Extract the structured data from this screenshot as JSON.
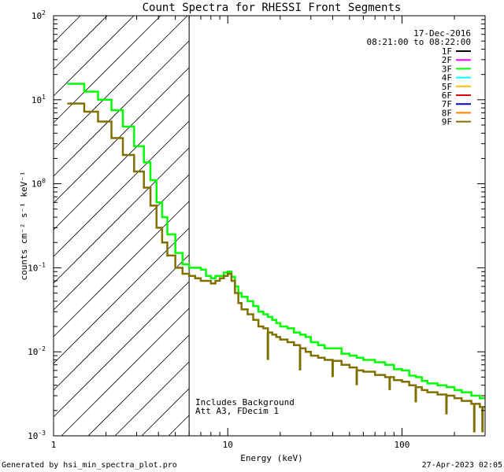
{
  "chart_data": {
    "type": "line",
    "title": "Count Spectra for RHESSI Front Segments",
    "xlabel": "Energy (keV)",
    "ylabel": "counts cm⁻² s⁻¹ keV⁻¹",
    "xscale": "log",
    "yscale": "log",
    "xlim": [
      1,
      300
    ],
    "ylim": [
      0.001,
      100
    ],
    "x_ticks": [
      {
        "value": 1,
        "label": "1"
      },
      {
        "value": 10,
        "label": "10"
      },
      {
        "value": 100,
        "label": "100"
      }
    ],
    "y_ticks": [
      {
        "value": 100,
        "base": "10",
        "exp": "2"
      },
      {
        "value": 10,
        "base": "10",
        "exp": "1"
      },
      {
        "value": 1,
        "base": "10",
        "exp": "0"
      },
      {
        "value": 0.1,
        "base": "10",
        "exp": "-1"
      },
      {
        "value": 0.01,
        "base": "10",
        "exp": "-2"
      },
      {
        "value": 0.001,
        "base": "10",
        "exp": "-3"
      }
    ],
    "date": "17-Dec-2016",
    "time_range": "08:21:00 to 08:22:00",
    "attenuated_region_upper_keV": 6,
    "annotations": [
      "Includes Background",
      "Att A3, FDecim  1"
    ],
    "legend": [
      {
        "name": "1F",
        "color": "#000000"
      },
      {
        "name": "2F",
        "color": "#ff00ff"
      },
      {
        "name": "3F",
        "color": "#00ff00"
      },
      {
        "name": "4F",
        "color": "#00ffff"
      },
      {
        "name": "5F",
        "color": "#ffbf00"
      },
      {
        "name": "6F",
        "color": "#dd0000"
      },
      {
        "name": "7F",
        "color": "#0000cc"
      },
      {
        "name": "8F",
        "color": "#ff8000"
      },
      {
        "name": "9F",
        "color": "#807000"
      }
    ],
    "series": [
      {
        "name": "3F",
        "color": "#00ff00",
        "x": [
          1.2,
          1.3,
          1.5,
          1.65,
          1.8,
          2.0,
          2.15,
          2.3,
          2.5,
          2.7,
          2.9,
          3.1,
          3.3,
          3.6,
          3.9,
          4.2,
          4.5,
          5.0,
          5.5,
          6.0,
          6.5,
          7.0,
          7.5,
          8.0,
          8.5,
          9.0,
          9.5,
          10.0,
          10.5,
          11.0,
          11.5,
          12.0,
          13.0,
          14.0,
          15.0,
          16.0,
          17.0,
          18.0,
          19.0,
          20.0,
          22.0,
          24.0,
          26.0,
          28.0,
          30.0,
          33.0,
          36.0,
          40.0,
          45.0,
          50.0,
          55.0,
          60.0,
          70.0,
          80.0,
          90.0,
          100.0,
          110.0,
          120.0,
          130.0,
          140.0,
          160.0,
          180.0,
          200.0,
          220.0,
          250.0,
          280.0,
          300.0
        ],
        "y": [
          15.5,
          15.5,
          12.5,
          12.5,
          10.0,
          10.0,
          7.5,
          7.5,
          4.8,
          4.8,
          2.8,
          2.8,
          1.8,
          1.1,
          0.6,
          0.4,
          0.25,
          0.15,
          0.11,
          0.1,
          0.1,
          0.095,
          0.08,
          0.075,
          0.08,
          0.08,
          0.088,
          0.09,
          0.078,
          0.06,
          0.05,
          0.045,
          0.04,
          0.035,
          0.03,
          0.028,
          0.026,
          0.024,
          0.022,
          0.02,
          0.019,
          0.017,
          0.016,
          0.015,
          0.013,
          0.012,
          0.011,
          0.011,
          0.0095,
          0.009,
          0.0085,
          0.008,
          0.0075,
          0.007,
          0.0062,
          0.006,
          0.0052,
          0.005,
          0.0045,
          0.0042,
          0.004,
          0.0038,
          0.0035,
          0.0033,
          0.003,
          0.0028,
          0.0028
        ]
      },
      {
        "name": "9F",
        "color": "#807000",
        "x": [
          1.2,
          1.3,
          1.5,
          1.65,
          1.8,
          2.0,
          2.15,
          2.3,
          2.5,
          2.7,
          2.9,
          3.1,
          3.3,
          3.6,
          3.9,
          4.2,
          4.5,
          5.0,
          5.5,
          6.0,
          6.5,
          7.0,
          7.5,
          8.0,
          8.5,
          9.0,
          9.5,
          10.0,
          10.5,
          11.0,
          11.5,
          12.0,
          13.0,
          14.0,
          15.0,
          16.0,
          17.0,
          18.0,
          19.0,
          20.0,
          22.0,
          24.0,
          26.0,
          28.0,
          30.0,
          33.0,
          36.0,
          40.0,
          45.0,
          50.0,
          55.0,
          60.0,
          70.0,
          80.0,
          90.0,
          100.0,
          110.0,
          120.0,
          130.0,
          140.0,
          160.0,
          180.0,
          200.0,
          220.0,
          250.0,
          280.0,
          300.0
        ],
        "y": [
          9.0,
          9.0,
          7.2,
          7.2,
          5.5,
          5.5,
          3.5,
          3.5,
          2.2,
          2.2,
          1.4,
          1.4,
          0.9,
          0.55,
          0.3,
          0.2,
          0.14,
          0.1,
          0.085,
          0.08,
          0.075,
          0.07,
          0.07,
          0.065,
          0.07,
          0.075,
          0.08,
          0.085,
          0.07,
          0.05,
          0.038,
          0.032,
          0.028,
          0.024,
          0.02,
          0.019,
          0.017,
          0.016,
          0.015,
          0.014,
          0.013,
          0.012,
          0.011,
          0.01,
          0.009,
          0.0085,
          0.008,
          0.0078,
          0.007,
          0.0065,
          0.006,
          0.0058,
          0.0053,
          0.005,
          0.0046,
          0.0044,
          0.004,
          0.0038,
          0.0035,
          0.0033,
          0.0031,
          0.003,
          0.0028,
          0.0026,
          0.0024,
          0.0022,
          0.0022
        ]
      }
    ],
    "dips": [
      {
        "series": "9F",
        "x": [
          17.0,
          26.0,
          40.0,
          55.0,
          85.0,
          120.0,
          180.0,
          260.0,
          290.0
        ],
        "y": [
          0.008,
          0.006,
          0.005,
          0.004,
          0.0035,
          0.0025,
          0.0018,
          0.0011,
          0.0011
        ]
      }
    ]
  },
  "footer": {
    "generated_by": "Generated by hsi_min_spectra_plot.pro",
    "timestamp": "27-Apr-2023 02:05"
  }
}
